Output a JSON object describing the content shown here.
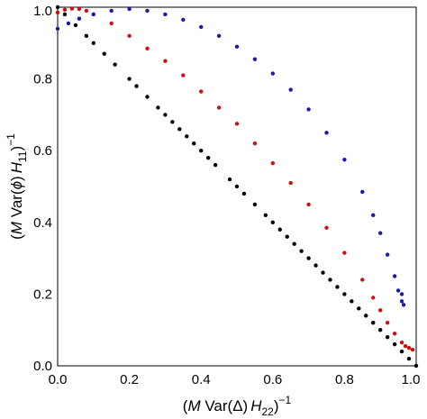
{
  "chart_data": {
    "type": "scatter",
    "xlabel_parts": [
      "(",
      "M",
      " Var(Δ)",
      "H",
      "22",
      ")",
      "−1"
    ],
    "ylabel_parts": [
      "(",
      "M",
      " Var(",
      "ϕ",
      ")",
      "H",
      "11",
      ")",
      "−1"
    ],
    "xlim": [
      0.0,
      1.0
    ],
    "ylim": [
      0.0,
      1.0
    ],
    "x_ticks": [
      "0.0",
      "0.2",
      "0.4",
      "0.6",
      "0.8",
      "1.0"
    ],
    "y_ticks": [
      "0.0",
      "0.2",
      "0.4",
      "0.6",
      "0.8",
      "1.0"
    ],
    "grid": false,
    "legend": "none",
    "series": [
      {
        "color": "#000000",
        "x": [
          0.0,
          0.02,
          0.05,
          0.08,
          0.1,
          0.13,
          0.16,
          0.2,
          0.22,
          0.25,
          0.28,
          0.3,
          0.32,
          0.34,
          0.36,
          0.38,
          0.4,
          0.42,
          0.44,
          0.48,
          0.5,
          0.52,
          0.55,
          0.58,
          0.6,
          0.62,
          0.64,
          0.66,
          0.68,
          0.7,
          0.72,
          0.74,
          0.76,
          0.78,
          0.8,
          0.82,
          0.84,
          0.86,
          0.88,
          0.9,
          0.92,
          0.94,
          0.96,
          0.98,
          1.0
        ],
        "y": [
          1.0,
          0.98,
          0.95,
          0.92,
          0.9,
          0.87,
          0.84,
          0.8,
          0.78,
          0.75,
          0.72,
          0.7,
          0.68,
          0.66,
          0.64,
          0.62,
          0.6,
          0.58,
          0.56,
          0.52,
          0.5,
          0.48,
          0.45,
          0.42,
          0.4,
          0.38,
          0.36,
          0.34,
          0.32,
          0.3,
          0.28,
          0.26,
          0.24,
          0.22,
          0.2,
          0.18,
          0.16,
          0.14,
          0.12,
          0.1,
          0.08,
          0.06,
          0.04,
          0.02,
          0.0
        ]
      },
      {
        "color": "#cc1111",
        "x": [
          0.0,
          0.02,
          0.04,
          0.06,
          0.08,
          0.1,
          0.15,
          0.2,
          0.25,
          0.3,
          0.35,
          0.4,
          0.45,
          0.5,
          0.55,
          0.6,
          0.65,
          0.7,
          0.75,
          0.8,
          0.85,
          0.88,
          0.9,
          0.92,
          0.94,
          0.96,
          0.97,
          0.98,
          0.99
        ],
        "y": [
          0.985,
          0.993,
          0.996,
          0.995,
          0.99,
          0.98,
          0.955,
          0.92,
          0.885,
          0.85,
          0.81,
          0.765,
          0.72,
          0.675,
          0.62,
          0.565,
          0.51,
          0.45,
          0.385,
          0.315,
          0.24,
          0.19,
          0.155,
          0.12,
          0.09,
          0.065,
          0.055,
          0.05,
          0.045
        ]
      },
      {
        "color": "#1a1aa8",
        "x": [
          0.0,
          0.03,
          0.06,
          0.1,
          0.15,
          0.2,
          0.25,
          0.3,
          0.35,
          0.4,
          0.45,
          0.5,
          0.55,
          0.6,
          0.65,
          0.7,
          0.75,
          0.8,
          0.85,
          0.88,
          0.9,
          0.92,
          0.94,
          0.95,
          0.96,
          0.965,
          0.96
        ],
        "y": [
          0.94,
          0.955,
          0.968,
          0.98,
          0.99,
          0.995,
          0.99,
          0.98,
          0.965,
          0.945,
          0.92,
          0.89,
          0.855,
          0.815,
          0.77,
          0.715,
          0.65,
          0.575,
          0.485,
          0.42,
          0.37,
          0.31,
          0.25,
          0.21,
          0.18,
          0.17,
          0.2
        ]
      }
    ]
  }
}
